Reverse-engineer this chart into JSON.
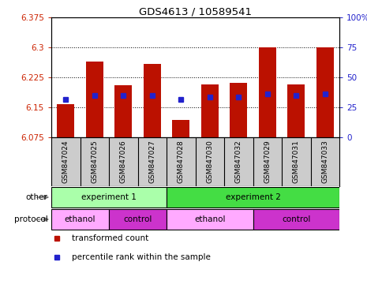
{
  "title": "GDS4613 / 10589541",
  "samples": [
    "GSM847024",
    "GSM847025",
    "GSM847026",
    "GSM847027",
    "GSM847028",
    "GSM847030",
    "GSM847032",
    "GSM847029",
    "GSM847031",
    "GSM847033"
  ],
  "bar_tops": [
    6.158,
    6.265,
    6.205,
    6.258,
    6.118,
    6.207,
    6.212,
    6.3,
    6.207,
    6.3
  ],
  "bar_bottom": 6.075,
  "blue_y": [
    6.169,
    6.179,
    6.179,
    6.179,
    6.169,
    6.176,
    6.176,
    6.183,
    6.179,
    6.183
  ],
  "ylim_left": [
    6.075,
    6.375
  ],
  "left_yticks": [
    6.075,
    6.15,
    6.225,
    6.3,
    6.375
  ],
  "left_yticklabels": [
    "6.075",
    "6.15",
    "6.225",
    "6.3",
    "6.375"
  ],
  "ylim_right": [
    0,
    100
  ],
  "right_yticks": [
    0,
    25,
    50,
    75,
    100
  ],
  "right_yticklabels": [
    "0",
    "25",
    "50",
    "75",
    "100%"
  ],
  "bar_color": "#bb1100",
  "blue_color": "#2222cc",
  "left_axis_color": "#cc2200",
  "right_axis_color": "#2222cc",
  "other_groups": [
    {
      "label": "experiment 1",
      "start": 0,
      "end": 4,
      "color": "#aaffaa"
    },
    {
      "label": "experiment 2",
      "start": 4,
      "end": 10,
      "color": "#44dd44"
    }
  ],
  "protocol_groups": [
    {
      "label": "ethanol",
      "start": 0,
      "end": 2,
      "color": "#ffaaff"
    },
    {
      "label": "control",
      "start": 2,
      "end": 4,
      "color": "#cc33cc"
    },
    {
      "label": "ethanol",
      "start": 4,
      "end": 7,
      "color": "#ffaaff"
    },
    {
      "label": "control",
      "start": 7,
      "end": 10,
      "color": "#cc33cc"
    }
  ],
  "legend": [
    {
      "label": "transformed count",
      "color": "#bb1100"
    },
    {
      "label": "percentile rank within the sample",
      "color": "#2222cc"
    }
  ],
  "xlabels_bg": "#cccccc",
  "plot_bg": "#ffffff"
}
